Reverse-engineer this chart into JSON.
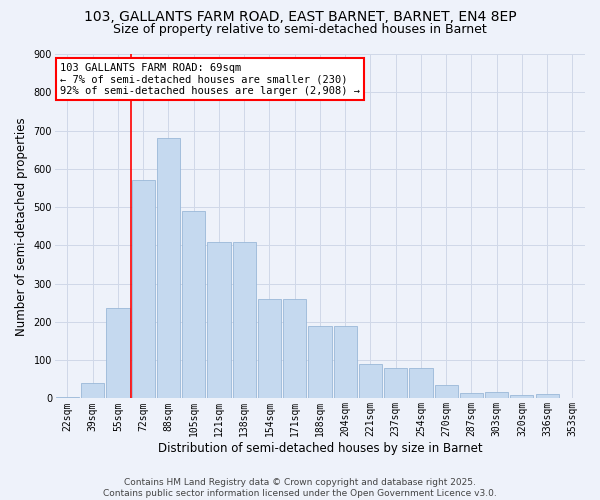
{
  "title_line1": "103, GALLANTS FARM ROAD, EAST BARNET, BARNET, EN4 8EP",
  "title_line2": "Size of property relative to semi-detached houses in Barnet",
  "xlabel": "Distribution of semi-detached houses by size in Barnet",
  "ylabel": "Number of semi-detached properties",
  "categories": [
    "22sqm",
    "39sqm",
    "55sqm",
    "72sqm",
    "88sqm",
    "105sqm",
    "121sqm",
    "138sqm",
    "154sqm",
    "171sqm",
    "188sqm",
    "204sqm",
    "221sqm",
    "237sqm",
    "254sqm",
    "270sqm",
    "287sqm",
    "303sqm",
    "320sqm",
    "336sqm",
    "353sqm"
  ],
  "values": [
    5,
    40,
    235,
    570,
    680,
    490,
    410,
    410,
    260,
    260,
    190,
    190,
    90,
    80,
    80,
    35,
    15,
    18,
    8,
    12,
    2
  ],
  "bar_color": "#c5d9ef",
  "bar_edge_color": "#9ab8d8",
  "vline_color": "red",
  "vline_x_idx": 2.5,
  "annotation_text": "103 GALLANTS FARM ROAD: 69sqm\n← 7% of semi-detached houses are smaller (230)\n92% of semi-detached houses are larger (2,908) →",
  "annotation_box_color": "white",
  "annotation_box_edge_color": "red",
  "ylim": [
    0,
    900
  ],
  "yticks": [
    0,
    100,
    200,
    300,
    400,
    500,
    600,
    700,
    800,
    900
  ],
  "bg_color": "#eef2fa",
  "grid_color": "#d0d8e8",
  "footnote": "Contains HM Land Registry data © Crown copyright and database right 2025.\nContains public sector information licensed under the Open Government Licence v3.0.",
  "title_fontsize": 10,
  "subtitle_fontsize": 9,
  "axis_label_fontsize": 8.5,
  "tick_fontsize": 7,
  "annotation_fontsize": 7.5,
  "footnote_fontsize": 6.5
}
